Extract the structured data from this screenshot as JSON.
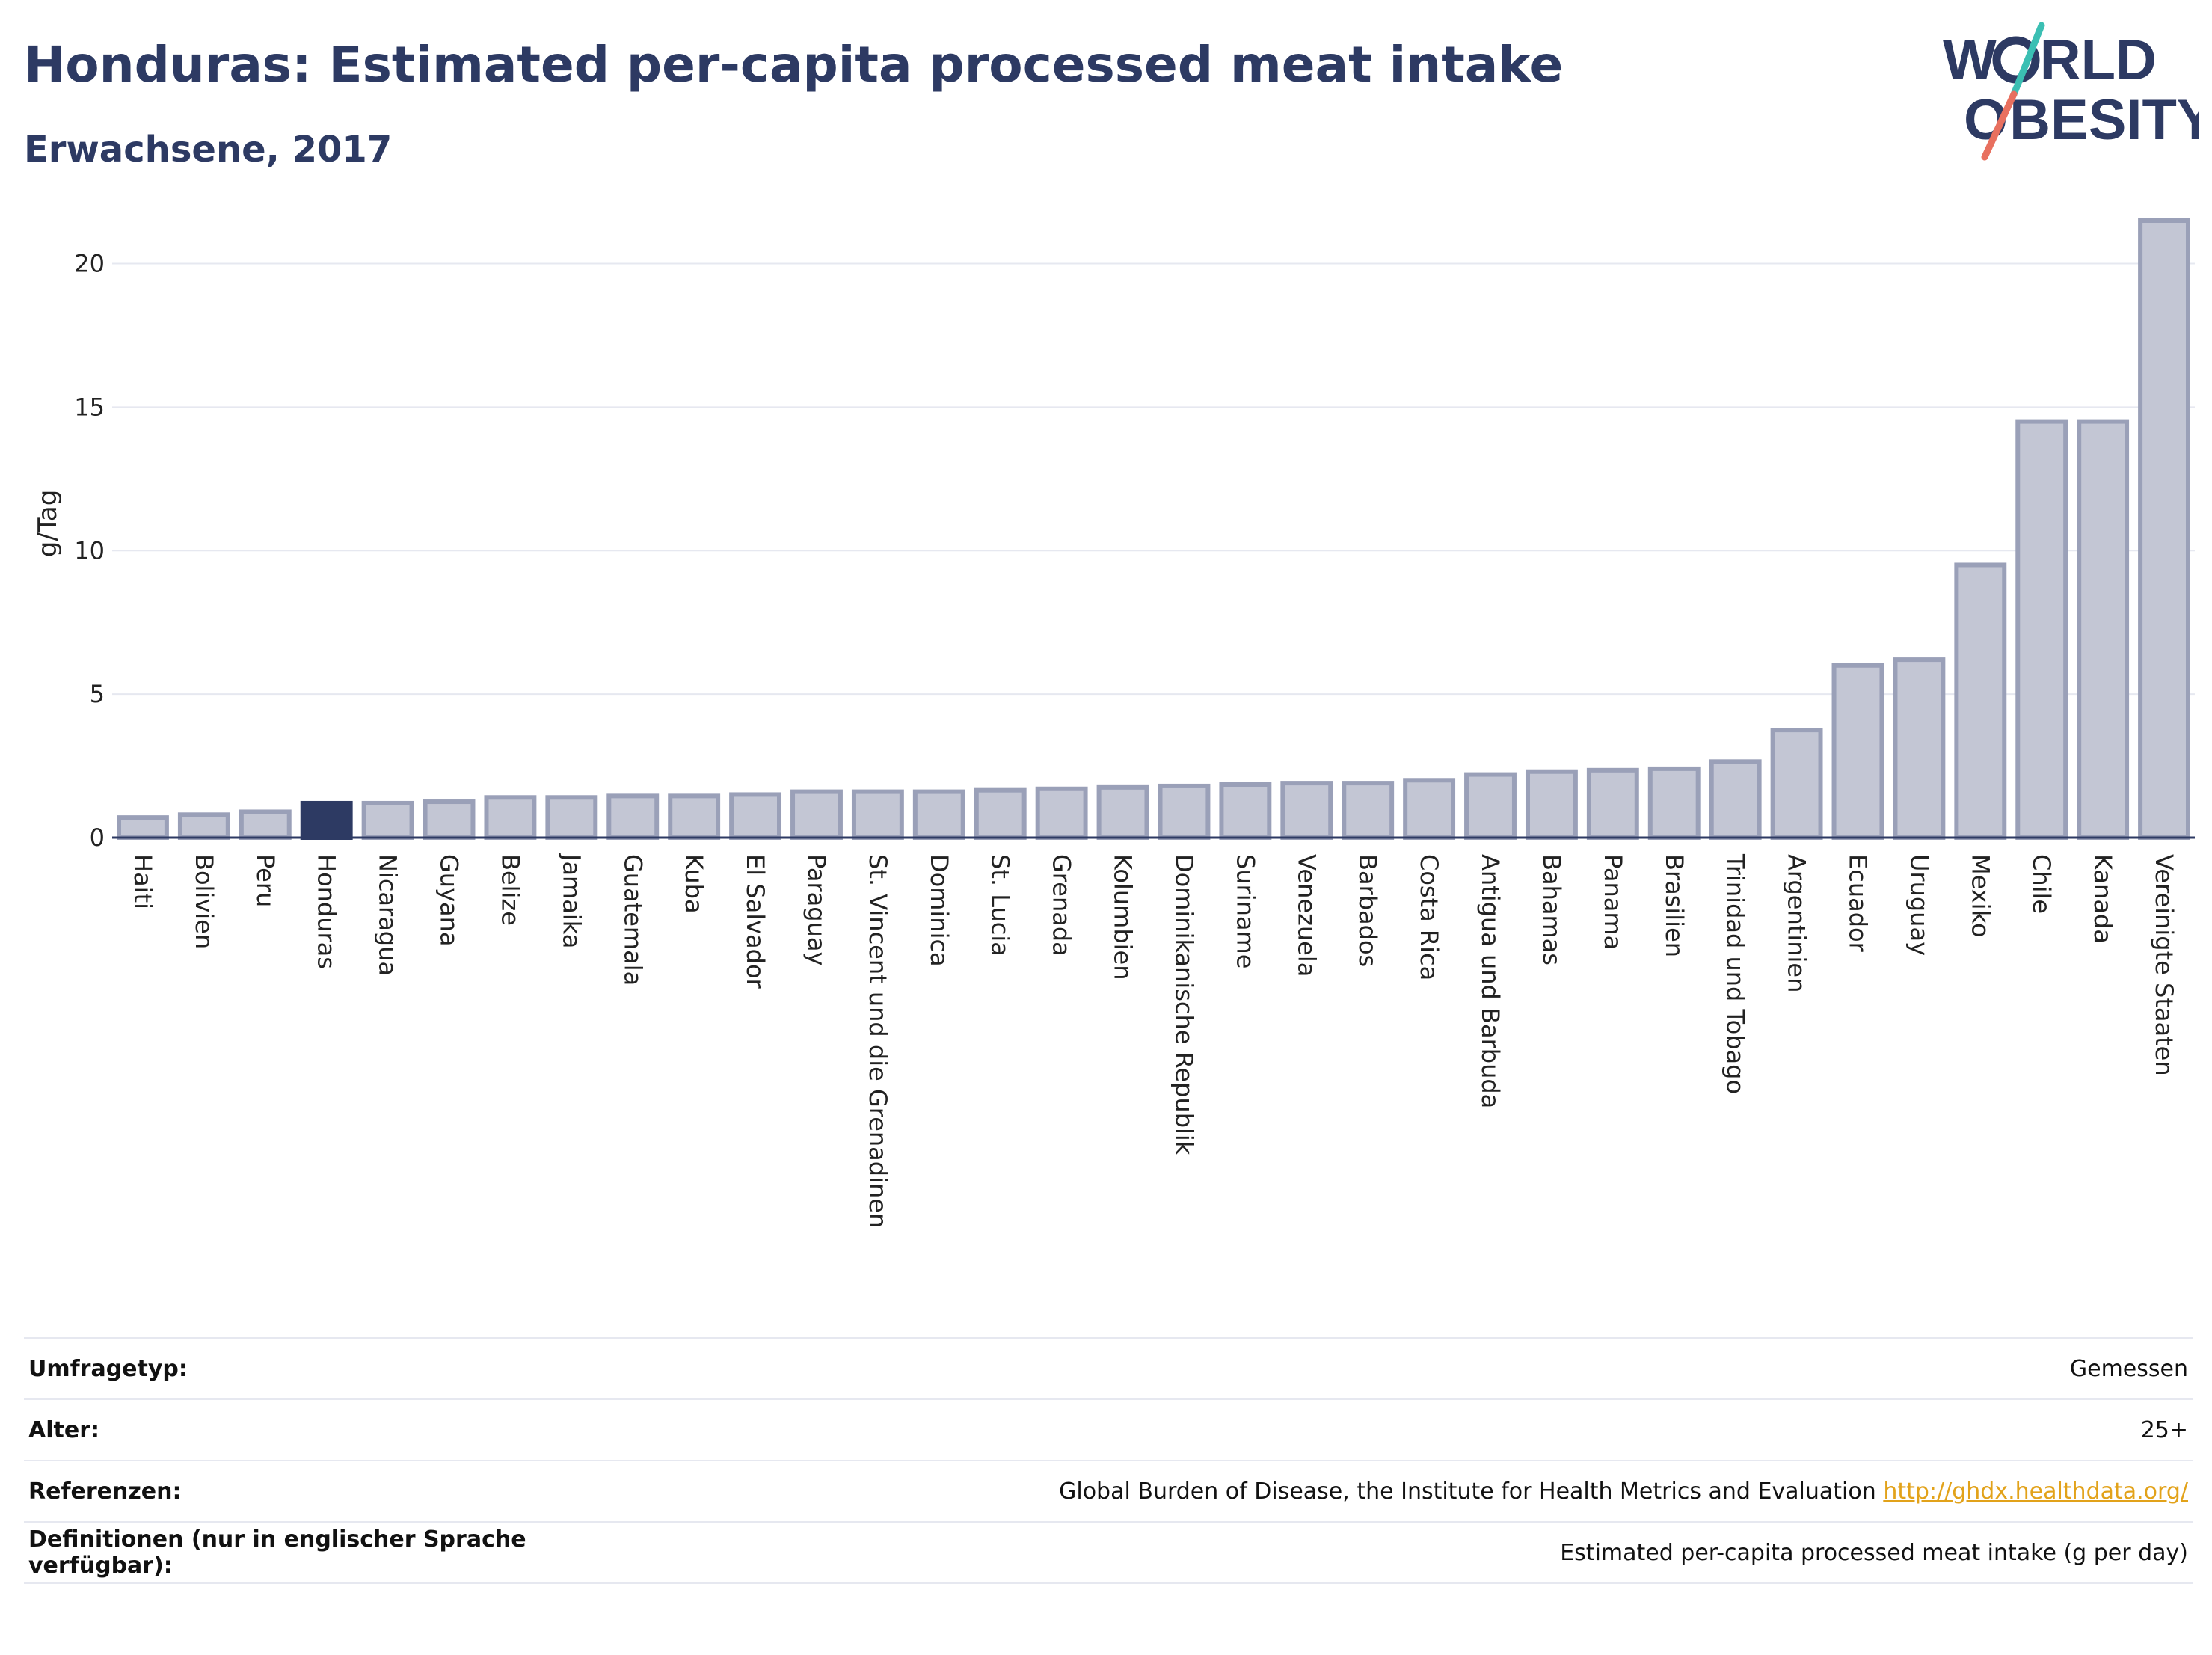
{
  "header": {
    "title": "Honduras: Estimated per-capita processed meat intake",
    "subtitle": "Erwachsene, 2017",
    "logo_text": [
      "W",
      "RLD",
      "O",
      "BESITY"
    ]
  },
  "colors": {
    "highlight": "#2d3a63",
    "bar_fill": "#c3c6d4",
    "bar_stroke": "#9aa0b8",
    "logo_navy": "#2d3a63",
    "logo_teal": "#3bbfb3",
    "logo_coral": "#e8705f",
    "link": "#e2a21a"
  },
  "chart_data": {
    "type": "bar",
    "title": "Honduras: Estimated per-capita processed meat intake",
    "subtitle": "Erwachsene, 2017",
    "xlabel": "",
    "ylabel": "g/Tag",
    "ylim": [
      0,
      22
    ],
    "yticks": [
      0,
      5,
      10,
      15,
      20
    ],
    "grid": true,
    "highlight": "Honduras",
    "categories": [
      "Haiti",
      "Bolivien",
      "Peru",
      "Honduras",
      "Nicaragua",
      "Guyana",
      "Belize",
      "Jamaika",
      "Guatemala",
      "Kuba",
      "El Salvador",
      "Paraguay",
      "St. Vincent und die Grenadinen",
      "Dominica",
      "St. Lucia",
      "Grenada",
      "Kolumbien",
      "Dominikanische Republik",
      "Suriname",
      "Venezuela",
      "Barbados",
      "Costa Rica",
      "Antigua und Barbuda",
      "Bahamas",
      "Panama",
      "Brasilien",
      "Trinidad und Tobago",
      "Argentinien",
      "Ecuador",
      "Uruguay",
      "Mexiko",
      "Chile",
      "Kanada",
      "Vereinigte Staaten"
    ],
    "values": [
      0.7,
      0.8,
      0.9,
      1.2,
      1.2,
      1.25,
      1.4,
      1.4,
      1.45,
      1.45,
      1.5,
      1.6,
      1.6,
      1.6,
      1.65,
      1.7,
      1.75,
      1.8,
      1.85,
      1.9,
      1.9,
      2.0,
      2.2,
      2.3,
      2.35,
      2.4,
      2.65,
      3.75,
      6.0,
      6.2,
      9.5,
      14.5,
      14.5,
      21.5
    ]
  },
  "meta": [
    {
      "key": "Umfragetyp:",
      "value": "Gemessen"
    },
    {
      "key": "Alter:",
      "value": "25+"
    },
    {
      "key": "Referenzen:",
      "value": "Global Burden of Disease, the Institute for Health Metrics and Evaluation",
      "link": "http://ghdx.healthdata.org/"
    },
    {
      "key": "Definitionen (nur in englischer Sprache verfügbar):",
      "value": "Estimated per-capita processed meat intake (g per day)"
    }
  ]
}
